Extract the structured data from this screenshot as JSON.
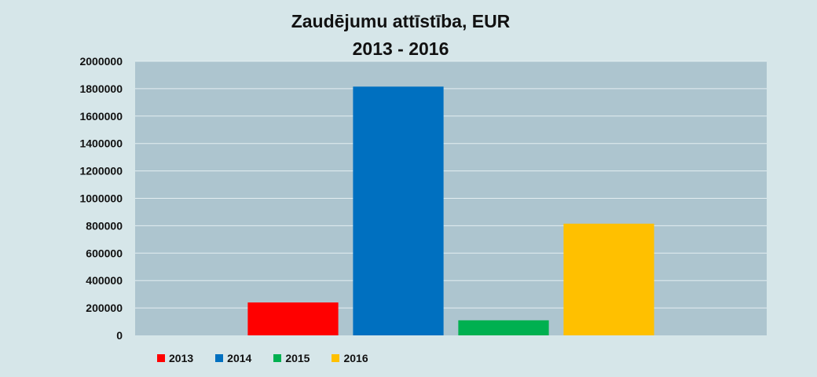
{
  "chart_data": {
    "type": "bar",
    "title": "Zaudējumu attīstība, EUR",
    "subtitle": "2013 - 2016",
    "categories": [
      "2013",
      "2014",
      "2015",
      "2016"
    ],
    "values": [
      240000,
      1815000,
      110000,
      815000
    ],
    "colors": [
      "#ff0000",
      "#0070c0",
      "#00b050",
      "#ffc000"
    ],
    "ylim": [
      0,
      2000000
    ],
    "yticks": [
      "0",
      "200000",
      "400000",
      "600000",
      "800000",
      "1000000",
      "1200000",
      "1400000",
      "1600000",
      "1800000",
      "2000000"
    ],
    "plot_background": "#adc5cf",
    "grid": true,
    "legend_position": "bottom-left"
  }
}
